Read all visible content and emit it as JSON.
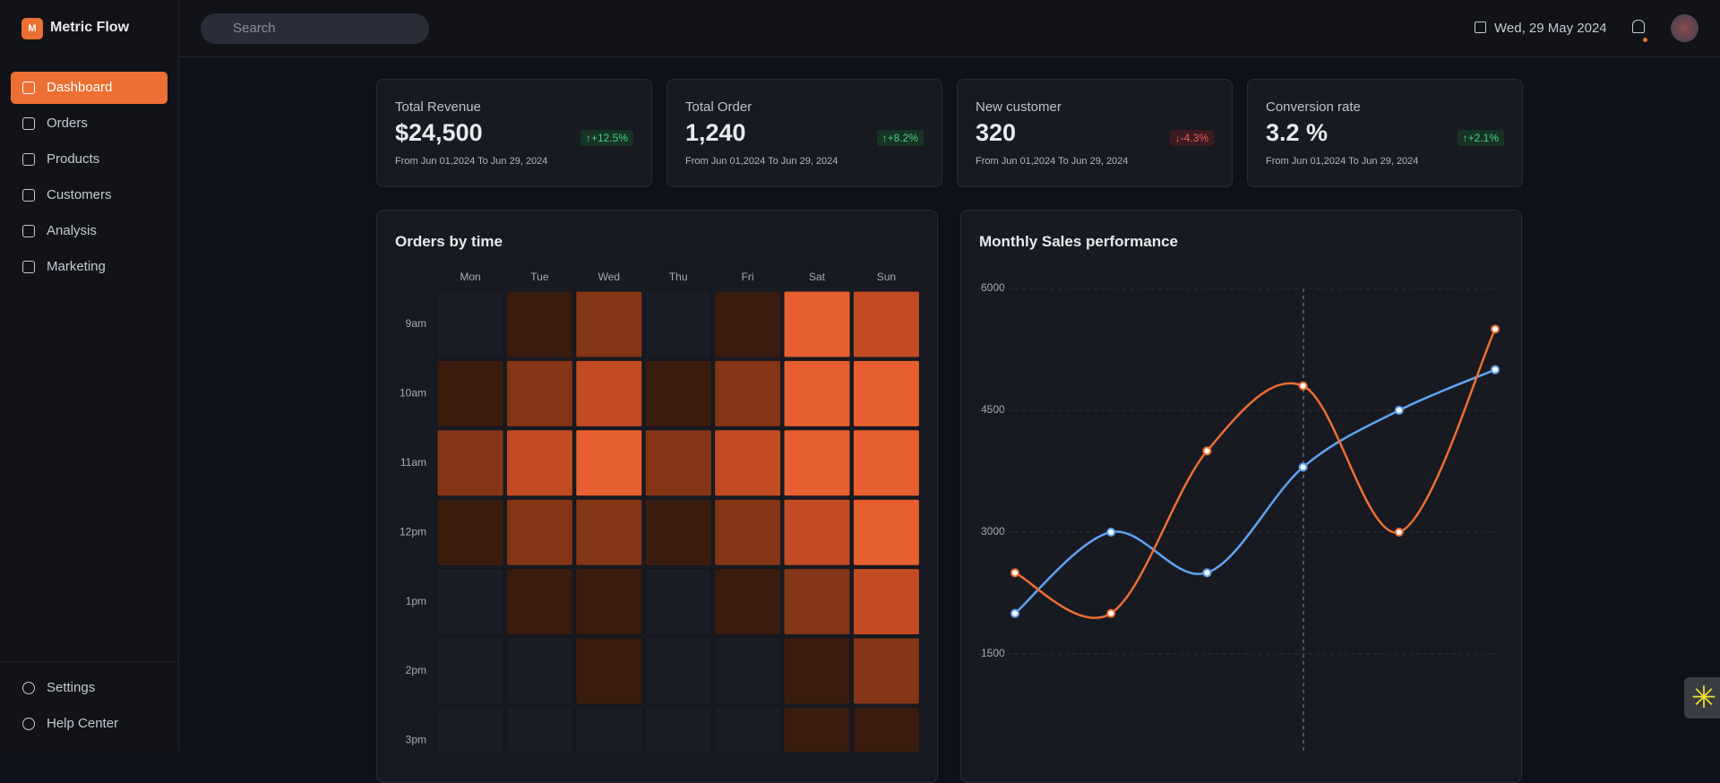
{
  "sidebar": {
    "logo_letter": "M",
    "brand": "Metric Flow",
    "nav": [
      "Dashboard",
      "Orders",
      "Products",
      "Customers",
      "Analysis",
      "Marketing"
    ],
    "active": 0,
    "footer": [
      "Settings",
      "Help Center"
    ]
  },
  "header": {
    "search_placeholder": "Search",
    "date": "Wed, 29 May 2024"
  },
  "kpis": [
    {
      "title": "Total Revenue",
      "value": "$24,500",
      "change": "+12.5%",
      "trend": "up",
      "range": "From Jun 01,2024 To Jun 29, 2024"
    },
    {
      "title": "Total Order",
      "value": "1,240",
      "change": "+8.2%",
      "trend": "up",
      "range": "From Jun 01,2024 To Jun 29, 2024"
    },
    {
      "title": "New customer",
      "value": "320",
      "change": "-4.3%",
      "trend": "down",
      "range": "From Jun 01,2024 To Jun 29, 2024"
    },
    {
      "title": "Conversion rate",
      "value": "3.2 %",
      "change": "+2.1%",
      "trend": "up",
      "range": "From Jun 01,2024 To Jun 29, 2024"
    }
  ],
  "orders_heatmap": {
    "type": "heatmap",
    "title": "Orders by time",
    "days": [
      "Mon",
      "Tue",
      "Wed",
      "Thu",
      "Fri",
      "Sat",
      "Sun"
    ],
    "hours": [
      "9am",
      "10am",
      "11am",
      "12pm",
      "1pm",
      "2pm",
      "3pm"
    ],
    "palette": [
      "#1b1d27",
      "#3a1c0e",
      "#833516",
      "#c24b24",
      "#e85f2f"
    ],
    "levels": [
      [
        0,
        1,
        2,
        0,
        1,
        4,
        3
      ],
      [
        1,
        2,
        3,
        1,
        2,
        4,
        4
      ],
      [
        2,
        3,
        4,
        2,
        3,
        4,
        4
      ],
      [
        1,
        2,
        2,
        1,
        2,
        3,
        4
      ],
      [
        0,
        1,
        1,
        0,
        1,
        2,
        3
      ],
      [
        0,
        0,
        1,
        0,
        0,
        1,
        2
      ],
      [
        0,
        0,
        0,
        0,
        0,
        1,
        1
      ]
    ]
  },
  "sales_chart": {
    "type": "line",
    "title": "Monthly Sales performance",
    "categories": [
      null,
      null,
      null,
      null,
      null,
      null
    ],
    "ylim": [
      0,
      6000
    ],
    "yticks": [
      1500,
      3000,
      4500,
      6000
    ],
    "grid": true,
    "series": [
      {
        "color": "#5fa3f0",
        "values": [
          2000,
          3000,
          2500,
          3800,
          4500,
          5000
        ]
      },
      {
        "color": "#ec6f33",
        "values": [
          2500,
          2000,
          4000,
          4800,
          3000,
          5500
        ]
      }
    ]
  }
}
